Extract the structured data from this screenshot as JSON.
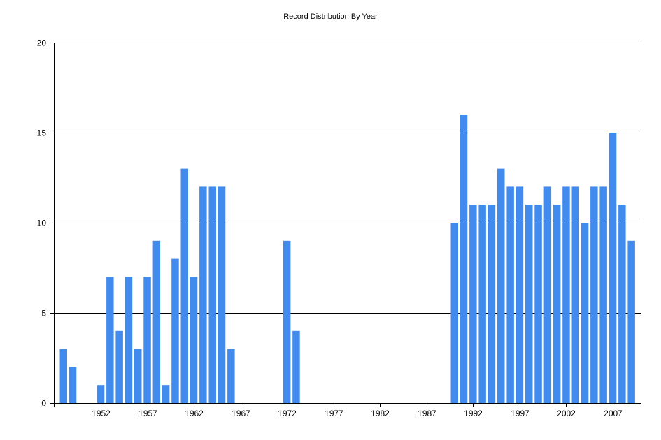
{
  "chart_data": {
    "type": "bar",
    "title": "Record Distribution By Year",
    "xlabel": "",
    "ylabel": "",
    "ylim": [
      0,
      20
    ],
    "yticks": [
      0,
      5,
      10,
      15,
      20
    ],
    "xlim": [
      1947,
      2010
    ],
    "xticks": [
      1952,
      1957,
      1962,
      1967,
      1972,
      1977,
      1982,
      1987,
      1992,
      1997,
      2002,
      2007
    ],
    "grid": true,
    "legend": "none",
    "bar_color": "#428BEE",
    "categories": [
      1948,
      1949,
      1952,
      1953,
      1954,
      1955,
      1956,
      1957,
      1958,
      1959,
      1960,
      1961,
      1962,
      1963,
      1964,
      1965,
      1966,
      1972,
      1973,
      1990,
      1991,
      1992,
      1993,
      1994,
      1995,
      1996,
      1997,
      1998,
      1999,
      2000,
      2001,
      2002,
      2003,
      2004,
      2005,
      2006,
      2007,
      2008,
      2009
    ],
    "values": [
      3,
      2,
      1,
      7,
      4,
      7,
      3,
      7,
      9,
      1,
      8,
      13,
      7,
      12,
      12,
      12,
      3,
      9,
      4,
      10,
      16,
      11,
      11,
      11,
      13,
      12,
      12,
      11,
      11,
      12,
      11,
      12,
      12,
      10,
      12,
      12,
      15,
      11,
      9
    ]
  }
}
